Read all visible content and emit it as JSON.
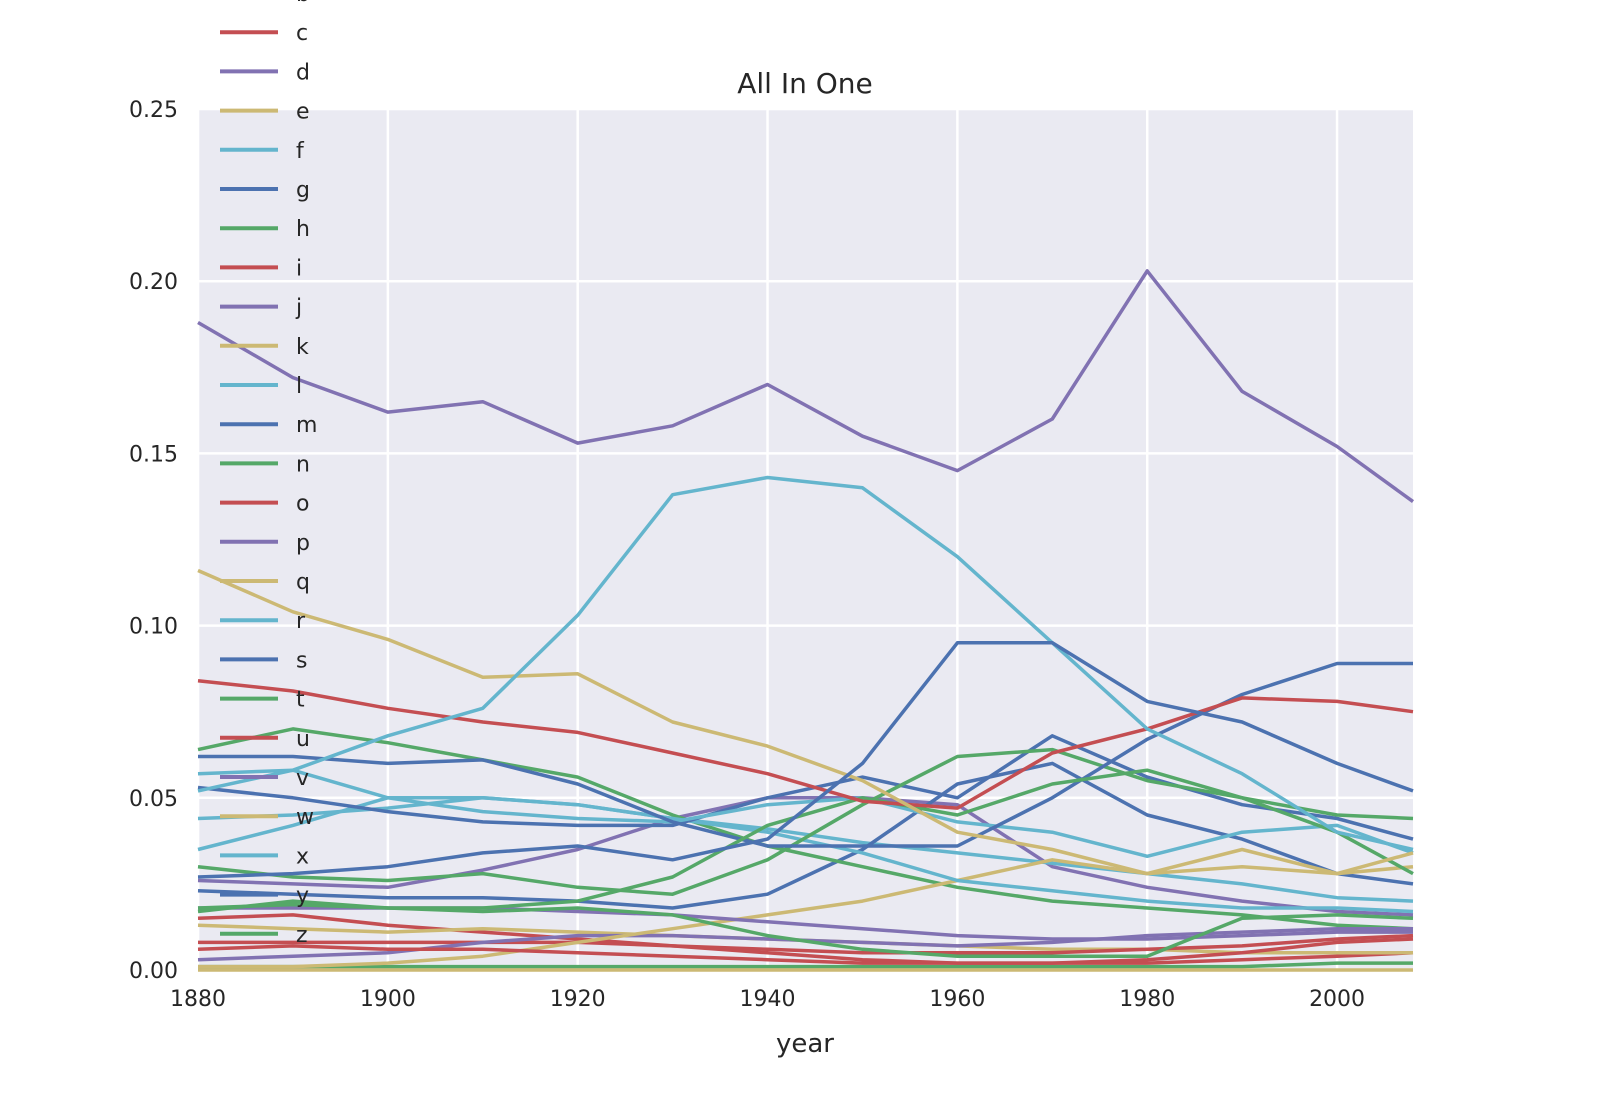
{
  "chart_data": {
    "type": "line",
    "title": "All In One",
    "xlabel": "year",
    "ylabel": "",
    "xlim": [
      1880,
      2008
    ],
    "ylim": [
      0,
      0.25
    ],
    "x_ticks": [
      "1880",
      "1900",
      "1920",
      "1940",
      "1960",
      "1980",
      "2000"
    ],
    "y_ticks": [
      "0.00",
      "0.05",
      "0.10",
      "0.15",
      "0.20",
      "0.25"
    ],
    "grid": true,
    "legend_position": "upper-left (overlapping plot, clipped at top)",
    "x": [
      1880,
      1890,
      1900,
      1910,
      1920,
      1930,
      1940,
      1950,
      1960,
      1970,
      1980,
      1990,
      2000,
      2008
    ],
    "series": [
      {
        "name": "b",
        "color": "#55a868",
        "values": [
          0.001,
          0.001,
          0.001,
          0.001,
          0.001,
          0.001,
          0.001,
          0.001,
          0.001,
          0.001,
          0.001,
          0.001,
          0.002,
          0.002
        ]
      },
      {
        "name": "c",
        "color": "#c44e52",
        "values": [
          0.015,
          0.016,
          0.013,
          0.011,
          0.009,
          0.007,
          0.005,
          0.003,
          0.002,
          0.002,
          0.002,
          0.003,
          0.004,
          0.005
        ]
      },
      {
        "name": "d",
        "color": "#8172b2",
        "values": [
          0.026,
          0.025,
          0.024,
          0.029,
          0.035,
          0.044,
          0.05,
          0.05,
          0.048,
          0.03,
          0.024,
          0.02,
          0.017,
          0.016
        ]
      },
      {
        "name": "e",
        "color": "#ccb974",
        "values": [
          0.013,
          0.012,
          0.011,
          0.012,
          0.011,
          0.01,
          0.009,
          0.008,
          0.007,
          0.006,
          0.006,
          0.005,
          0.005,
          0.005
        ]
      },
      {
        "name": "f",
        "color": "#64b5cd",
        "values": [
          0.044,
          0.045,
          0.047,
          0.05,
          0.048,
          0.044,
          0.041,
          0.037,
          0.034,
          0.031,
          0.028,
          0.025,
          0.021,
          0.02
        ]
      },
      {
        "name": "g",
        "color": "#4c72b0",
        "values": [
          0.023,
          0.022,
          0.021,
          0.021,
          0.02,
          0.018,
          0.022,
          0.035,
          0.054,
          0.06,
          0.045,
          0.038,
          0.028,
          0.025
        ]
      },
      {
        "name": "h",
        "color": "#55a868",
        "values": [
          0.064,
          0.07,
          0.066,
          0.061,
          0.056,
          0.045,
          0.036,
          0.03,
          0.024,
          0.02,
          0.018,
          0.016,
          0.013,
          0.012
        ]
      },
      {
        "name": "i",
        "color": "#c44e52",
        "values": [
          0.008,
          0.008,
          0.008,
          0.008,
          0.008,
          0.007,
          0.006,
          0.005,
          0.005,
          0.005,
          0.006,
          0.007,
          0.009,
          0.01
        ]
      },
      {
        "name": "j",
        "color": "#8172b2",
        "values": [
          0.003,
          0.004,
          0.005,
          0.008,
          0.01,
          0.01,
          0.009,
          0.008,
          0.007,
          0.008,
          0.01,
          0.011,
          0.012,
          0.012
        ]
      },
      {
        "name": "k",
        "color": "#ccb974",
        "values": [
          0.001,
          0.001,
          0.002,
          0.004,
          0.008,
          0.012,
          0.016,
          0.02,
          0.026,
          0.032,
          0.028,
          0.03,
          0.028,
          0.03
        ]
      },
      {
        "name": "l",
        "color": "#64b5cd",
        "values": [
          0.035,
          0.042,
          0.05,
          0.05,
          0.048,
          0.044,
          0.04,
          0.034,
          0.026,
          0.023,
          0.02,
          0.018,
          0.018,
          0.017
        ]
      },
      {
        "name": "m",
        "color": "#4c72b0",
        "values": [
          0.053,
          0.05,
          0.046,
          0.043,
          0.042,
          0.042,
          0.05,
          0.056,
          0.05,
          0.068,
          0.056,
          0.048,
          0.044,
          0.038
        ]
      },
      {
        "name": "n",
        "color": "#55a868",
        "values": [
          0.03,
          0.027,
          0.026,
          0.028,
          0.024,
          0.022,
          0.032,
          0.048,
          0.062,
          0.064,
          0.055,
          0.05,
          0.045,
          0.044
        ]
      },
      {
        "name": "o",
        "color": "#c44e52",
        "values": [
          0.006,
          0.007,
          0.006,
          0.006,
          0.005,
          0.004,
          0.003,
          0.002,
          0.002,
          0.002,
          0.003,
          0.005,
          0.008,
          0.009
        ]
      },
      {
        "name": "p",
        "color": "#8172b2",
        "values": [
          0.018,
          0.018,
          0.018,
          0.018,
          0.017,
          0.016,
          0.014,
          0.012,
          0.01,
          0.009,
          0.009,
          0.01,
          0.011,
          0.011
        ]
      },
      {
        "name": "q",
        "color": "#ccb974",
        "values": [
          0.0,
          0.0,
          0.0,
          0.0,
          0.0,
          0.0,
          0.0,
          0.0,
          0.0,
          0.0,
          0.0,
          0.0,
          0.0,
          0.0
        ]
      },
      {
        "name": "r",
        "color": "#64b5cd",
        "values": [
          0.057,
          0.058,
          0.05,
          0.046,
          0.044,
          0.043,
          0.048,
          0.05,
          0.043,
          0.04,
          0.033,
          0.04,
          0.042,
          0.034
        ]
      },
      {
        "name": "s",
        "color": "#4c72b0",
        "values": [
          0.062,
          0.062,
          0.06,
          0.061,
          0.054,
          0.043,
          0.036,
          0.036,
          0.036,
          0.05,
          0.067,
          0.08,
          0.089,
          0.089
        ]
      },
      {
        "name": "t",
        "color": "#55a868",
        "values": [
          0.018,
          0.019,
          0.018,
          0.018,
          0.02,
          0.027,
          0.042,
          0.05,
          0.045,
          0.054,
          0.058,
          0.05,
          0.04,
          0.028
        ]
      },
      {
        "name": "u",
        "color": "#c44e52",
        "values": [
          0.084,
          0.081,
          0.076,
          0.072,
          0.069,
          0.063,
          0.057,
          0.049,
          0.047,
          0.063,
          0.07,
          0.079,
          0.078,
          0.075
        ]
      },
      {
        "name": "v",
        "color": "#8172b2",
        "values": [
          0.188,
          0.172,
          0.162,
          0.165,
          0.153,
          0.158,
          0.17,
          0.155,
          0.145,
          0.16,
          0.203,
          0.168,
          0.152,
          0.136
        ]
      },
      {
        "name": "w",
        "color": "#ccb974",
        "values": [
          0.116,
          0.104,
          0.096,
          0.085,
          0.086,
          0.072,
          0.065,
          0.055,
          0.04,
          0.035,
          0.028,
          0.035,
          0.028,
          0.034
        ]
      },
      {
        "name": "x",
        "color": "#64b5cd",
        "values": [
          0.052,
          0.058,
          0.068,
          0.076,
          0.103,
          0.138,
          0.143,
          0.14,
          0.12,
          0.095,
          0.07,
          0.057,
          0.04,
          0.035
        ]
      },
      {
        "name": "y",
        "color": "#4c72b0",
        "values": [
          0.027,
          0.028,
          0.03,
          0.034,
          0.036,
          0.032,
          0.038,
          0.06,
          0.095,
          0.095,
          0.078,
          0.072,
          0.06,
          0.052
        ]
      },
      {
        "name": "z",
        "color": "#55a868",
        "values": [
          0.017,
          0.02,
          0.018,
          0.017,
          0.018,
          0.016,
          0.01,
          0.006,
          0.004,
          0.004,
          0.004,
          0.015,
          0.016,
          0.015
        ]
      }
    ]
  }
}
